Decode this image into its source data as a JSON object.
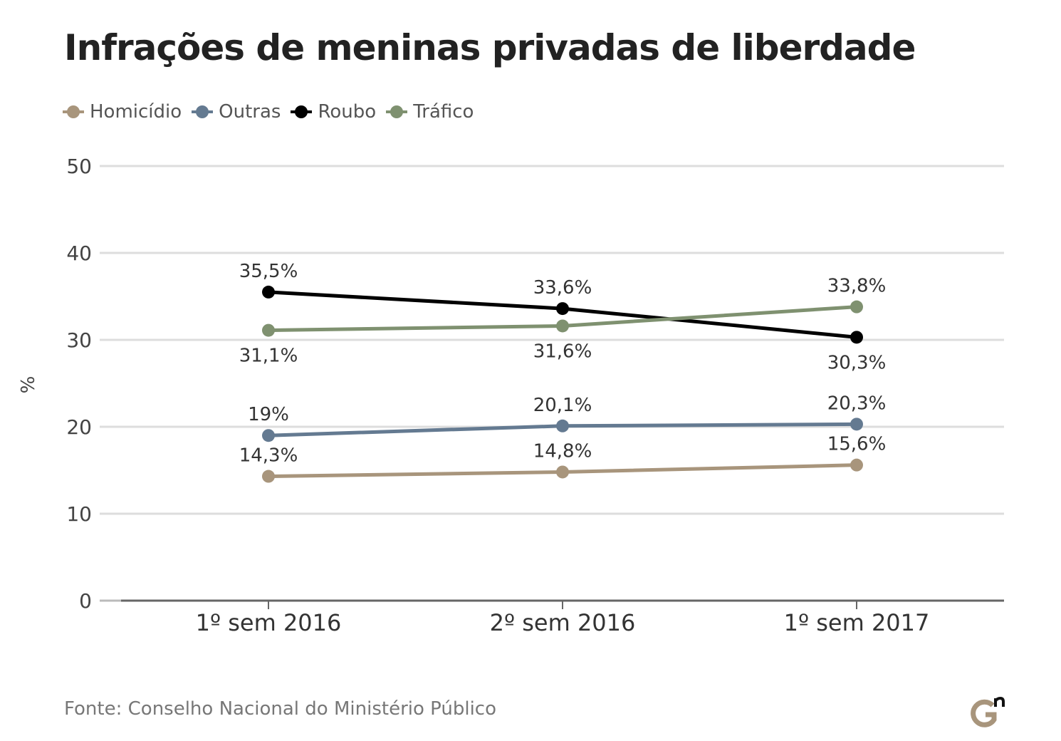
{
  "title": "Infrações de meninas privadas de liberdade",
  "source": "Fonte: Conselho Nacional do Ministério Público",
  "legend": [
    {
      "label": "Homicídio",
      "color": "#a8957c"
    },
    {
      "label": "Outras",
      "color": "#647a91"
    },
    {
      "label": "Roubo",
      "color": "#000000"
    },
    {
      "label": "Tráfico",
      "color": "#7f9170"
    }
  ],
  "chart_data": {
    "type": "line",
    "title": "Infrações de meninas privadas de liberdade",
    "ylabel": "%",
    "xlabel": "",
    "categories": [
      "1º sem 2016",
      "2º sem 2016",
      "1º sem 2017"
    ],
    "ylim": [
      0,
      50
    ],
    "yticks": [
      "0",
      "10",
      "20",
      "30",
      "40",
      "50"
    ],
    "grid": true,
    "legend_position": "top-left",
    "series": [
      {
        "name": "Homicídio",
        "color": "#a8957c",
        "values": [
          14.3,
          14.8,
          15.6
        ],
        "labels": [
          "14,3%",
          "14,8%",
          "15,6%"
        ],
        "label_pos": [
          "above",
          "above",
          "above"
        ]
      },
      {
        "name": "Outras",
        "color": "#647a91",
        "values": [
          19,
          20.1,
          20.3
        ],
        "labels": [
          "19%",
          "20,1%",
          "20,3%"
        ],
        "label_pos": [
          "above",
          "above",
          "above"
        ]
      },
      {
        "name": "Roubo",
        "color": "#000000",
        "values": [
          35.5,
          33.6,
          30.3
        ],
        "labels": [
          "35,5%",
          "33,6%",
          "30,3%"
        ],
        "label_pos": [
          "above",
          "above",
          "below"
        ]
      },
      {
        "name": "Tráfico",
        "color": "#7f9170",
        "values": [
          31.1,
          31.6,
          33.8
        ],
        "labels": [
          "31,1%",
          "31,6%",
          "33,8%"
        ],
        "label_pos": [
          "below",
          "below",
          "above"
        ]
      }
    ]
  }
}
